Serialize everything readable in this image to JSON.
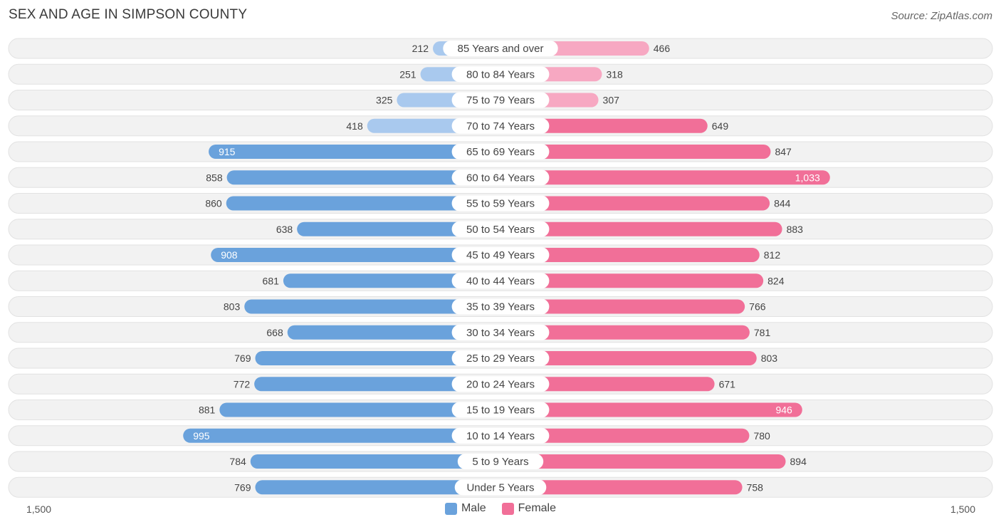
{
  "header": {
    "title": "SEX AND AGE IN SIMPSON COUNTY",
    "source": "Source: ZipAtlas.com"
  },
  "colors": {
    "male_strong": "#6aa2dc",
    "male_light": "#a9c9ee",
    "female_strong": "#f16f98",
    "female_light": "#f7a8c2",
    "row_bg": "#f2f2f2",
    "row_border": "#e2e2e2"
  },
  "chart_data": {
    "type": "bar",
    "orientation": "horizontal-butterfly",
    "title": "SEX AND AGE IN SIMPSON COUNTY",
    "categories": [
      "85 Years and over",
      "80 to 84 Years",
      "75 to 79 Years",
      "70 to 74 Years",
      "65 to 69 Years",
      "60 to 64 Years",
      "55 to 59 Years",
      "50 to 54 Years",
      "45 to 49 Years",
      "40 to 44 Years",
      "35 to 39 Years",
      "30 to 34 Years",
      "25 to 29 Years",
      "20 to 24 Years",
      "15 to 19 Years",
      "10 to 14 Years",
      "5 to 9 Years",
      "Under 5 Years"
    ],
    "series": [
      {
        "name": "Male",
        "values": [
          212,
          251,
          325,
          418,
          915,
          858,
          860,
          638,
          908,
          681,
          803,
          668,
          769,
          772,
          881,
          995,
          784,
          769
        ],
        "labels": [
          "212",
          "251",
          "325",
          "418",
          "915",
          "858",
          "860",
          "638",
          "908",
          "681",
          "803",
          "668",
          "769",
          "772",
          "881",
          "995",
          "784",
          "769"
        ]
      },
      {
        "name": "Female",
        "values": [
          466,
          318,
          307,
          649,
          847,
          1033,
          844,
          883,
          812,
          824,
          766,
          781,
          803,
          671,
          946,
          780,
          894,
          758
        ],
        "labels": [
          "466",
          "318",
          "307",
          "649",
          "847",
          "1,033",
          "844",
          "883",
          "812",
          "824",
          "766",
          "781",
          "803",
          "671",
          "946",
          "780",
          "894",
          "758"
        ]
      }
    ],
    "xlim": [
      0,
      1500
    ],
    "axis_min_label": "1,500",
    "axis_max_label": "1,500",
    "legend_position": "bottom-center"
  }
}
